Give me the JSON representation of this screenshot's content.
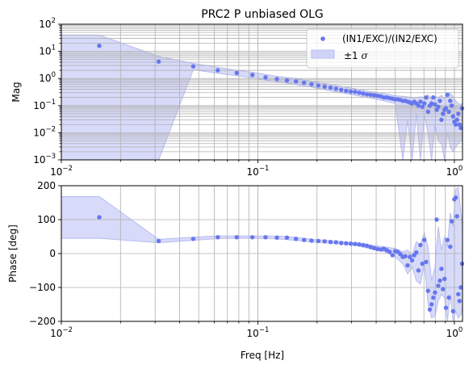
{
  "chart_data": [
    {
      "type": "scatter",
      "panel": "magnitude",
      "title": "PRC2 P unbiased OLG",
      "xlabel": "",
      "ylabel": "Mag",
      "xscale": "log",
      "yscale": "log",
      "xlim": [
        0.01,
        1.1
      ],
      "ylim": [
        0.001,
        100
      ],
      "x_ticks": [
        {
          "v": 0.01,
          "b": "10",
          "e": "−2"
        },
        {
          "v": 0.1,
          "b": "10",
          "e": "−1"
        },
        {
          "v": 1,
          "b": "10",
          "e": "0"
        }
      ],
      "y_ticks": [
        {
          "v": 0.001,
          "b": "10",
          "e": "−3"
        },
        {
          "v": 0.01,
          "b": "10",
          "e": "−2"
        },
        {
          "v": 0.1,
          "b": "10",
          "e": "−1"
        },
        {
          "v": 1,
          "b": "10",
          "e": "0"
        },
        {
          "v": 10,
          "b": "10",
          "e": "1"
        },
        {
          "v": 100,
          "b": "10",
          "e": "2"
        }
      ],
      "grid": true,
      "legend": {
        "position": "top-right",
        "entries": [
          {
            "label": "(IN1/EXC)/(IN2/EXC)",
            "kind": "point"
          },
          {
            "label": "±1 ",
            "sym": "σ",
            "kind": "band"
          }
        ]
      },
      "colors": {
        "points": "#6677ee",
        "band_fill": "#d0d3f8",
        "band_edge": "#b8bcf2"
      },
      "series": [
        {
          "name": "(IN1/EXC)/(IN2/EXC)",
          "x": [
            0.0156,
            0.0313,
            0.0469,
            0.0625,
            0.0781,
            0.0938,
            0.1094,
            0.125,
            0.1406,
            0.1563,
            0.1719,
            0.1875,
            0.2031,
            0.2188,
            0.2344,
            0.25,
            0.2656,
            0.2813,
            0.2969,
            0.3125,
            0.3281,
            0.3438,
            0.3594,
            0.375,
            0.3906,
            0.4063,
            0.4219,
            0.4375,
            0.4531,
            0.4688,
            0.4844,
            0.5,
            0.5156,
            0.5313,
            0.5469,
            0.5625,
            0.5781,
            0.5938,
            0.6094,
            0.625,
            0.6406,
            0.6563,
            0.6719,
            0.6875,
            0.7031,
            0.7188,
            0.7344,
            0.75,
            0.7656,
            0.7813,
            0.7969,
            0.8125,
            0.8281,
            0.8438,
            0.8594,
            0.875,
            0.8906,
            0.9063,
            0.9219,
            0.9375,
            0.9531,
            0.9688,
            0.9844,
            1.0,
            1.0156,
            1.0313,
            1.0469,
            1.0625,
            1.0781,
            1.0938
          ],
          "y": [
            16,
            4.2,
            2.8,
            2.0,
            1.6,
            1.35,
            1.1,
            0.95,
            0.85,
            0.78,
            0.7,
            0.62,
            0.55,
            0.5,
            0.46,
            0.42,
            0.38,
            0.35,
            0.33,
            0.32,
            0.3,
            0.28,
            0.26,
            0.25,
            0.24,
            0.23,
            0.22,
            0.2,
            0.2,
            0.19,
            0.18,
            0.17,
            0.17,
            0.16,
            0.15,
            0.15,
            0.14,
            0.13,
            0.12,
            0.14,
            0.12,
            0.1,
            0.14,
            0.09,
            0.12,
            0.2,
            0.06,
            0.1,
            0.12,
            0.2,
            0.11,
            0.07,
            0.09,
            0.15,
            0.03,
            0.05,
            0.07,
            0.08,
            0.25,
            0.06,
            0.15,
            0.1,
            0.04,
            0.025,
            0.02,
            0.03,
            0.05,
            0.02,
            0.015,
            0.08
          ]
        }
      ],
      "band": {
        "name": "±1 σ",
        "x": [
          0.01,
          0.0156,
          0.0313,
          0.0469,
          0.0625,
          0.0781,
          0.0938,
          0.125,
          0.1563,
          0.1875,
          0.25,
          0.3125,
          0.375,
          0.4375,
          0.5,
          0.5469,
          0.5781,
          0.6094,
          0.6406,
          0.6719,
          0.7031,
          0.7344,
          0.7656,
          0.7969,
          0.8281,
          0.8594,
          0.8906,
          0.9219,
          0.9531,
          0.9844,
          1.0156,
          1.0469,
          1.0781,
          1.1
        ],
        "upper": [
          40,
          40,
          6.5,
          3.6,
          2.6,
          2.0,
          1.7,
          1.2,
          1.0,
          0.8,
          0.55,
          0.42,
          0.33,
          0.28,
          0.23,
          0.22,
          0.21,
          0.2,
          0.2,
          0.21,
          0.2,
          0.25,
          0.17,
          0.22,
          0.2,
          0.24,
          0.18,
          0.3,
          0.28,
          0.22,
          0.15,
          0.12,
          0.11,
          0.12
        ],
        "lower": [
          0.001,
          0.001,
          0.001,
          2.1,
          1.55,
          1.25,
          1.05,
          0.75,
          0.6,
          0.48,
          0.32,
          0.24,
          0.19,
          0.15,
          0.12,
          0.001,
          0.03,
          0.001,
          0.05,
          0.001,
          0.04,
          0.01,
          0.001,
          0.02,
          0.005,
          0.004,
          0.001,
          0.01,
          0.003,
          0.002,
          0.003,
          0.004,
          0.005,
          0.005
        ]
      }
    },
    {
      "type": "scatter",
      "panel": "phase",
      "title": "",
      "xlabel": "Freq [Hz]",
      "ylabel": "Phase [deg]",
      "xscale": "log",
      "yscale": "linear",
      "xlim": [
        0.01,
        1.1
      ],
      "ylim": [
        -200,
        200
      ],
      "x_ticks": [
        {
          "v": 0.01,
          "b": "10",
          "e": "−2"
        },
        {
          "v": 0.1,
          "b": "10",
          "e": "−1"
        },
        {
          "v": 1,
          "b": "10",
          "e": "0"
        }
      ],
      "y_ticks": [
        {
          "v": -200,
          "t": "−200"
        },
        {
          "v": -100,
          "t": "−100"
        },
        {
          "v": 0,
          "t": "0"
        },
        {
          "v": 100,
          "t": "100"
        },
        {
          "v": 200,
          "t": "200"
        }
      ],
      "grid": true,
      "colors": {
        "points": "#6677ee",
        "band_fill": "#d0d3f8",
        "band_edge": "#b8bcf2"
      },
      "series": [
        {
          "name": "(IN1/EXC)/(IN2/EXC)",
          "x": [
            0.0156,
            0.0313,
            0.0469,
            0.0625,
            0.0781,
            0.0938,
            0.1094,
            0.125,
            0.1406,
            0.1563,
            0.1719,
            0.1875,
            0.2031,
            0.2188,
            0.2344,
            0.25,
            0.2656,
            0.2813,
            0.2969,
            0.3125,
            0.3281,
            0.3438,
            0.3594,
            0.375,
            0.3906,
            0.4063,
            0.4219,
            0.4375,
            0.4531,
            0.4688,
            0.4844,
            0.5,
            0.5156,
            0.5313,
            0.5469,
            0.5625,
            0.5781,
            0.5938,
            0.6094,
            0.625,
            0.6406,
            0.6563,
            0.6719,
            0.6875,
            0.7031,
            0.7188,
            0.7344,
            0.75,
            0.7656,
            0.7813,
            0.7969,
            0.8125,
            0.8281,
            0.8438,
            0.8594,
            0.875,
            0.8906,
            0.9063,
            0.9219,
            0.9375,
            0.9531,
            0.9688,
            0.9844,
            1.0,
            1.0156,
            1.0313,
            1.0469,
            1.0625,
            1.0781,
            1.0938
          ],
          "y": [
            107,
            37,
            43,
            48,
            48,
            48,
            48,
            47,
            47,
            43,
            40,
            38,
            37,
            36,
            34,
            33,
            31,
            30,
            29,
            28,
            27,
            25,
            23,
            19,
            16,
            13,
            12,
            14,
            10,
            5,
            -5,
            7,
            5,
            -2,
            -10,
            -8,
            -35,
            -10,
            -20,
            -5,
            3,
            -50,
            25,
            -30,
            40,
            -25,
            -110,
            -165,
            -150,
            -130,
            -115,
            100,
            -95,
            -80,
            -45,
            -105,
            -75,
            -160,
            40,
            -130,
            20,
            95,
            -170,
            160,
            165,
            110,
            -120,
            -140,
            -100,
            -30
          ]
        }
      ],
      "band": {
        "name": "±1 σ",
        "x": [
          0.01,
          0.0156,
          0.0313,
          0.0469,
          0.0625,
          0.0781,
          0.0938,
          0.125,
          0.1563,
          0.1875,
          0.25,
          0.3125,
          0.375,
          0.4375,
          0.5,
          0.5469,
          0.5781,
          0.6094,
          0.6406,
          0.6719,
          0.7031,
          0.7344,
          0.7656,
          0.7969,
          0.8281,
          0.8594,
          0.8906,
          0.9219,
          0.9531,
          0.9844,
          1.0156,
          1.0469,
          1.0781,
          1.1
        ],
        "upper": [
          168,
          168,
          42,
          48,
          52,
          52,
          52,
          52,
          48,
          42,
          37,
          32,
          25,
          20,
          15,
          5,
          10,
          -5,
          35,
          25,
          60,
          20,
          -80,
          -40,
          80,
          10,
          50,
          20,
          120,
          80,
          190,
          195,
          120,
          80
        ],
        "lower": [
          45,
          45,
          32,
          39,
          44,
          45,
          45,
          43,
          39,
          34,
          29,
          24,
          14,
          6,
          -10,
          -30,
          -60,
          -40,
          -80,
          -90,
          -30,
          -150,
          -190,
          -185,
          -140,
          -120,
          -130,
          -200,
          -120,
          -200,
          -170,
          -190,
          -180,
          -160
        ]
      }
    }
  ]
}
